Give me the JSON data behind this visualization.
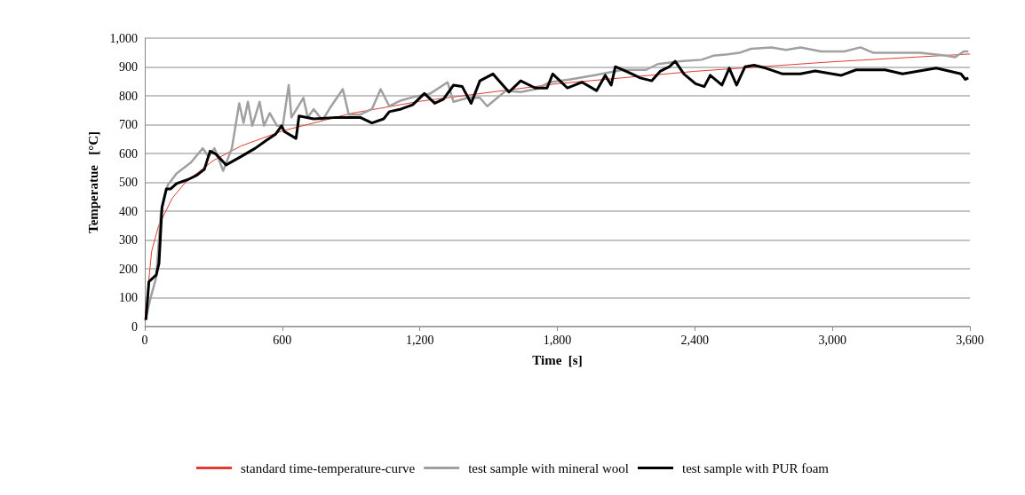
{
  "chart_data": {
    "type": "line",
    "xlabel": "Time  [s]",
    "ylabel": "Temperatue   [°C]",
    "xlim": [
      0,
      3600
    ],
    "xticks": [
      0,
      600,
      {
        "value": 1200,
        "label": "1,200"
      },
      {
        "value": 1800,
        "label": "1,800"
      },
      {
        "value": 2400,
        "label": "2,400"
      },
      {
        "value": 3000,
        "label": "3,000"
      },
      {
        "value": 3600,
        "label": "3,600"
      }
    ],
    "ylim": [
      0,
      1000
    ],
    "yticks": [
      0,
      100,
      200,
      300,
      400,
      500,
      600,
      700,
      800,
      900,
      {
        "value": 1000,
        "label": "1,000"
      }
    ],
    "grid": "y",
    "legend": "bottom",
    "marker": "none",
    "line_style": "solid",
    "series": [
      {
        "name": "standard time-temperature-curve",
        "color": "#e03c31",
        "x": [
          0,
          30,
          60,
          120,
          180,
          300,
          420,
          600,
          900,
          1200,
          1800,
          2400,
          3000,
          3600
        ],
        "values": [
          20,
          261,
          349,
          445,
          502,
          576,
          626,
          678,
          739,
          781,
          842,
          885,
          918,
          945
        ]
      },
      {
        "name": "test sample with mineral wool",
        "color": "#a0a0a0",
        "x": [
          8,
          25,
          50,
          70,
          100,
          139,
          202,
          253,
          278,
          304,
          342,
          380,
          412,
          431,
          450,
          469,
          501,
          520,
          545,
          577,
          602,
          628,
          640,
          692,
          711,
          737,
          775,
          813,
          864,
          890,
          940,
          991,
          1029,
          1067,
          1118,
          1182,
          1246,
          1321,
          1347,
          1410,
          1462,
          1494,
          1538,
          1576,
          1640,
          1704,
          1767,
          1856,
          1958,
          2085,
          2187,
          2238,
          2340,
          2429,
          2480,
          2543,
          2594,
          2645,
          2734,
          2798,
          2861,
          2951,
          3052,
          3123,
          3179,
          3281,
          3382,
          3497,
          3535,
          3573,
          3593
        ],
        "values": [
          40,
          98,
          170,
          394,
          490,
          531,
          569,
          618,
          589,
          618,
          540,
          618,
          774,
          706,
          779,
          696,
          779,
          696,
          740,
          696,
          696,
          837,
          725,
          793,
          725,
          754,
          715,
          764,
          823,
          735,
          735,
          754,
          823,
          764,
          784,
          798,
          808,
          847,
          779,
          793,
          793,
          764,
          793,
          818,
          813,
          823,
          847,
          857,
          871,
          890,
          890,
          910,
          920,
          925,
          939,
          944,
          949,
          963,
          968,
          959,
          968,
          954,
          954,
          968,
          949,
          949,
          949,
          939,
          934,
          954,
          954
        ]
      },
      {
        "name": "test sample with PUR foam",
        "color": "#000000",
        "x": [
          5,
          18,
          50,
          62,
          75,
          94,
          113,
          139,
          190,
          228,
          260,
          285,
          310,
          355,
          419,
          482,
          533,
          571,
          597,
          609,
          660,
          673,
          737,
          839,
          940,
          991,
          1042,
          1067,
          1118,
          1169,
          1220,
          1265,
          1303,
          1347,
          1385,
          1424,
          1462,
          1519,
          1545,
          1589,
          1640,
          1704,
          1755,
          1780,
          1844,
          1908,
          1971,
          2009,
          2035,
          2053,
          2111,
          2162,
          2212,
          2250,
          2289,
          2314,
          2352,
          2403,
          2441,
          2467,
          2518,
          2550,
          2582,
          2619,
          2658,
          2709,
          2783,
          2860,
          2925,
          3039,
          3103,
          3230,
          3306,
          3453,
          3561,
          3580,
          3593
        ],
        "values": [
          23,
          155,
          179,
          219,
          413,
          477,
          477,
          496,
          510,
          525,
          545,
          608,
          598,
          560,
          589,
          618,
          647,
          667,
          696,
          676,
          652,
          730,
          720,
          725,
          725,
          706,
          720,
          745,
          754,
          769,
          808,
          774,
          788,
          837,
          832,
          774,
          852,
          876,
          852,
          813,
          852,
          827,
          827,
          876,
          827,
          847,
          818,
          871,
          837,
          901,
          881,
          862,
          852,
          886,
          901,
          920,
          876,
          842,
          832,
          871,
          837,
          896,
          837,
          901,
          906,
          896,
          876,
          876,
          886,
          871,
          890,
          890,
          876,
          896,
          876,
          857,
          862
        ]
      }
    ]
  }
}
